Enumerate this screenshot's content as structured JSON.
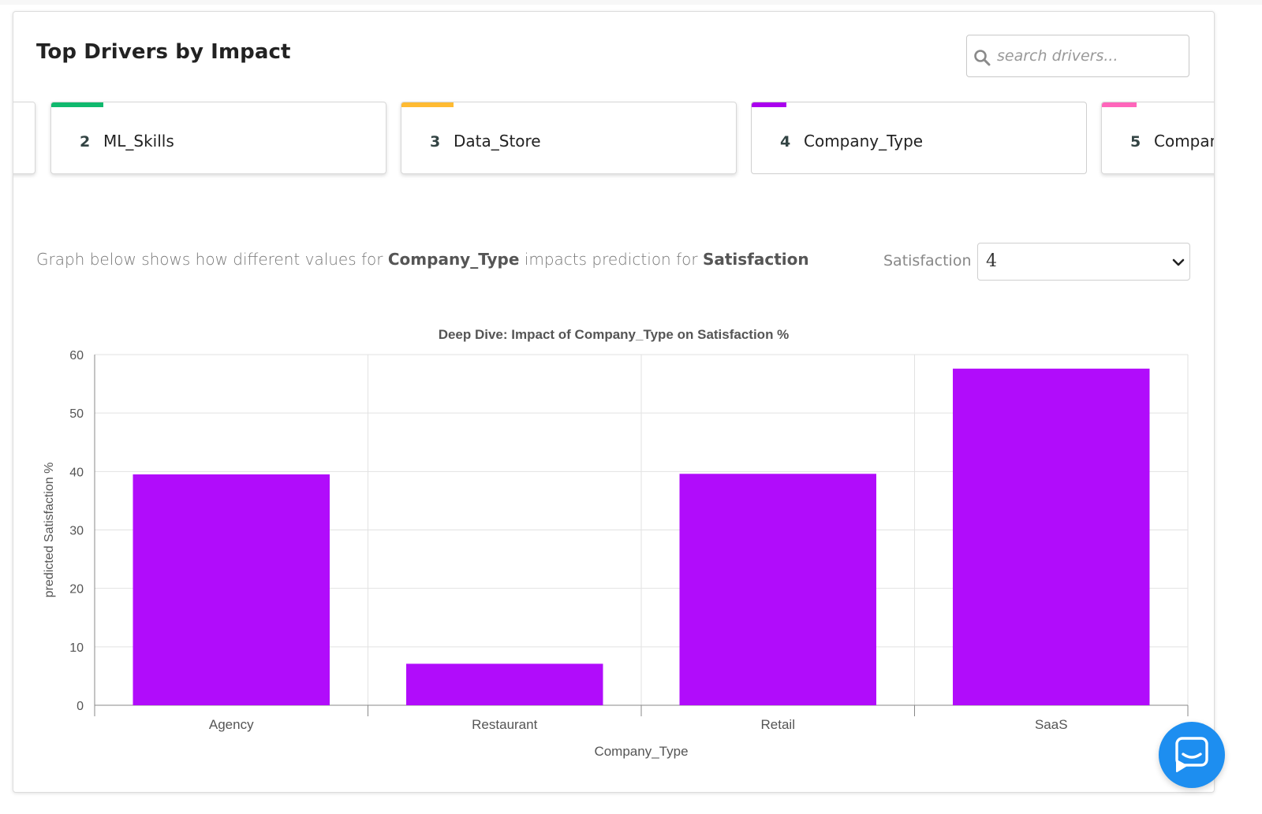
{
  "panel": {
    "title": "Top Drivers by Impact"
  },
  "search": {
    "placeholder": "search drivers...",
    "value": ""
  },
  "drivers": [
    {
      "rank": "",
      "label": "",
      "accent": "#ffffff"
    },
    {
      "rank": "2",
      "label": "ML_Skills",
      "accent": "#10b96e"
    },
    {
      "rank": "3",
      "label": "Data_Store",
      "accent": "#ffbb33"
    },
    {
      "rank": "4",
      "label": "Company_Type",
      "accent": "#aa00ee"
    },
    {
      "rank": "5",
      "label": "Compan",
      "accent": "#ff66bb"
    }
  ],
  "description": {
    "prefix": "Graph below shows how different values for ",
    "feature": "Company_Type",
    "middle": " impacts prediction for ",
    "target": "Satisfaction"
  },
  "target_select": {
    "label": "Satisfaction =",
    "value": "4"
  },
  "chart_data": {
    "type": "bar",
    "title": "Deep Dive: Impact of Company_Type on Satisfaction %",
    "xlabel": "Company_Type",
    "ylabel": "predicted Satisfaction %",
    "categories": [
      "Agency",
      "Restaurant",
      "Retail",
      "SaaS"
    ],
    "values": [
      39.5,
      7.1,
      39.6,
      57.6
    ],
    "ylim": [
      0,
      60
    ],
    "yticks": [
      0,
      10,
      20,
      30,
      40,
      50,
      60
    ],
    "grid": true,
    "color": "#b10cfb"
  },
  "colors": {
    "bar": "#b10cfb",
    "chat_button": "#1d8ef0"
  },
  "icons": {
    "search": "search-icon",
    "select": "chevron-down-icon",
    "chat": "chat-icon"
  }
}
